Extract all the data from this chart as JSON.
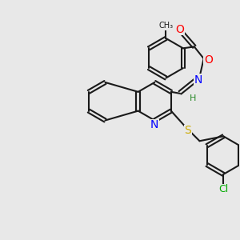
{
  "bg_color": "#e8e8e8",
  "bond_color": "#1a1a1a",
  "atom_colors": {
    "N": "#0000ff",
    "O": "#ff0000",
    "S": "#ccaa00",
    "Cl": "#00aa00",
    "C": "#1a1a1a",
    "H": "#2a8a2a"
  },
  "figsize": [
    3.0,
    3.0
  ],
  "dpi": 100
}
